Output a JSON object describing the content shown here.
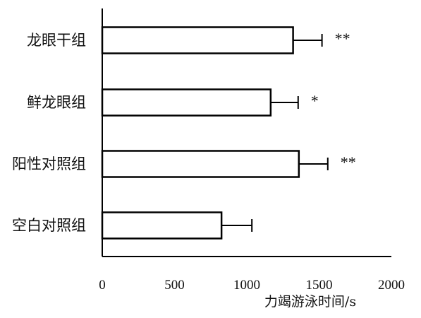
{
  "chart_data": {
    "type": "bar",
    "orientation": "horizontal",
    "categories": [
      "空白对照组",
      "阳性对照组",
      "鲜龙眼组",
      "龙眼干组"
    ],
    "values": [
      825,
      1360,
      1165,
      1320
    ],
    "errors": [
      210,
      200,
      190,
      200
    ],
    "significance": [
      "",
      "**",
      "*",
      "**"
    ],
    "xlabel": "力竭游泳时间/s",
    "xlim": [
      0,
      2000
    ],
    "xticks": [
      0,
      500,
      1000,
      1500,
      2000
    ],
    "grid": false,
    "colors": {
      "bar_fill": "#ffffff",
      "bar_stroke": "#000000",
      "axis": "#000000"
    }
  }
}
